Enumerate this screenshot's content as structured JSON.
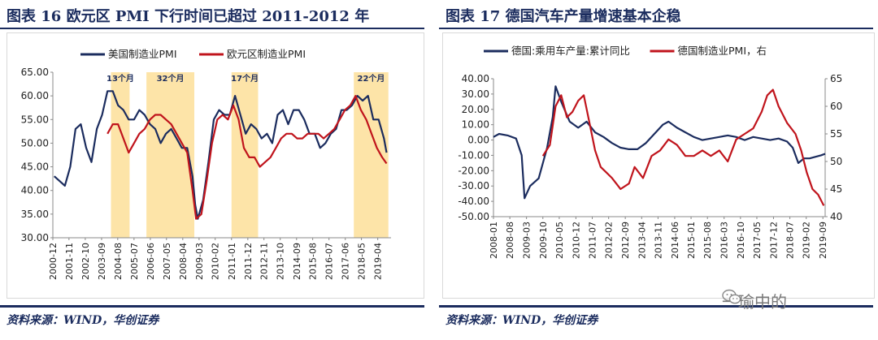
{
  "colors": {
    "navy": "#1b2c5e",
    "red": "#c0141c",
    "highlight": "#fde4a8",
    "grid": "#e6e6e6"
  },
  "watermark": {
    "text": "一瑜中的"
  },
  "left": {
    "title": "图表 16   欧元区 PMI 下行时间已超过 2011-2012 年",
    "source": "资料来源：WIND，华创证券"
  },
  "right": {
    "title": "图表 17    德国汽车产量增速基本企稳",
    "source": "资料来源：WIND，华创证券"
  },
  "chart_data": [
    {
      "type": "line",
      "title": "",
      "legend": [
        "美国制造业PMI",
        "欧元区制造业PMI"
      ],
      "legend_position": "top",
      "ylim": [
        30,
        65
      ],
      "y_ticks": [
        "30.00",
        "35.00",
        "40.00",
        "45.00",
        "50.00",
        "55.00",
        "60.00",
        "65.00"
      ],
      "x_range": [
        2000.92,
        2020.0
      ],
      "x_tick_labels": [
        "2000-12",
        "2001-11",
        "2002-10",
        "2003-09",
        "2004-08",
        "2005-07",
        "2006-06",
        "2007-05",
        "2008-04",
        "2009-03",
        "2010-02",
        "2011-01",
        "2011-12",
        "2012-11",
        "2013-10",
        "2014-09",
        "2015-08",
        "2016-07",
        "2017-06",
        "2018-05",
        "2019-04"
      ],
      "x_tick_values": [
        2000.92,
        2001.83,
        2002.75,
        2003.67,
        2004.58,
        2005.5,
        2006.42,
        2007.33,
        2008.25,
        2009.17,
        2010.08,
        2011.0,
        2011.92,
        2012.83,
        2013.75,
        2014.67,
        2015.58,
        2016.5,
        2017.42,
        2018.33,
        2019.25
      ],
      "shaded_periods": [
        {
          "label": "13个月",
          "start": 2004.2,
          "end": 2005.25
        },
        {
          "label": "32个月",
          "start": 2006.2,
          "end": 2008.9
        },
        {
          "label": "17个月",
          "start": 2011.0,
          "end": 2012.5
        },
        {
          "label": "22个月",
          "start": 2017.9,
          "end": 2019.85
        }
      ],
      "series": [
        {
          "name": "美国制造业PMI",
          "color": "#1b2c5e",
          "x": [
            2001.0,
            2001.3,
            2001.6,
            2001.9,
            2002.2,
            2002.5,
            2002.8,
            2003.1,
            2003.4,
            2003.7,
            2004.0,
            2004.3,
            2004.6,
            2004.9,
            2005.2,
            2005.5,
            2005.8,
            2006.1,
            2006.4,
            2006.7,
            2007.0,
            2007.3,
            2007.6,
            2007.9,
            2008.2,
            2008.5,
            2008.8,
            2008.95,
            2009.1,
            2009.4,
            2009.7,
            2010.0,
            2010.3,
            2010.6,
            2010.9,
            2011.2,
            2011.5,
            2011.8,
            2012.1,
            2012.4,
            2012.7,
            2013.0,
            2013.3,
            2013.6,
            2013.9,
            2014.2,
            2014.5,
            2014.8,
            2015.1,
            2015.4,
            2015.7,
            2016.0,
            2016.3,
            2016.6,
            2016.9,
            2017.2,
            2017.5,
            2017.8,
            2018.1,
            2018.4,
            2018.7,
            2019.0,
            2019.3,
            2019.6,
            2019.75
          ],
          "y": [
            43,
            42,
            41,
            45,
            53,
            54,
            49,
            46,
            53,
            56,
            61,
            61,
            58,
            57,
            55,
            55,
            57,
            56,
            54,
            53,
            50,
            52,
            53,
            51,
            49,
            49,
            43,
            37,
            34,
            38,
            46,
            55,
            57,
            56,
            56,
            60,
            56,
            52,
            54,
            53,
            51,
            52,
            50,
            56,
            57,
            54,
            57,
            57,
            55,
            52,
            52,
            49,
            50,
            52,
            53,
            57,
            57,
            58,
            60,
            59,
            60,
            55,
            55,
            51,
            48
          ]
        },
        {
          "name": "欧元区制造业PMI",
          "color": "#c0141c",
          "x": [
            2004.0,
            2004.3,
            2004.6,
            2004.9,
            2005.2,
            2005.5,
            2005.8,
            2006.1,
            2006.4,
            2006.7,
            2007.0,
            2007.3,
            2007.6,
            2007.9,
            2008.2,
            2008.5,
            2008.8,
            2009.0,
            2009.3,
            2009.6,
            2009.9,
            2010.2,
            2010.5,
            2010.8,
            2011.1,
            2011.4,
            2011.7,
            2012.0,
            2012.3,
            2012.6,
            2012.9,
            2013.2,
            2013.5,
            2013.8,
            2014.1,
            2014.4,
            2014.7,
            2015.0,
            2015.3,
            2015.6,
            2015.9,
            2016.2,
            2016.5,
            2016.8,
            2017.1,
            2017.4,
            2017.7,
            2018.0,
            2018.3,
            2018.6,
            2018.9,
            2019.2,
            2019.5,
            2019.75
          ],
          "y": [
            52,
            54,
            54,
            51,
            48,
            50,
            52,
            53,
            55,
            56,
            56,
            55,
            54,
            52,
            50,
            48,
            40,
            34,
            35,
            42,
            50,
            55,
            56,
            55,
            58,
            55,
            49,
            47,
            47,
            45,
            46,
            47,
            49,
            51,
            52,
            52,
            51,
            51,
            52,
            52,
            52,
            51,
            52,
            53,
            55,
            57,
            58,
            60,
            57,
            55,
            52,
            49,
            47,
            45.7
          ]
        }
      ]
    },
    {
      "type": "line",
      "title": "",
      "legend": [
        "德国:乘用车产量:累计同比",
        "德国制造业PMI，右"
      ],
      "legend_position": "top",
      "ylim": [
        -50,
        40
      ],
      "y_ticks": [
        "-50.00",
        "-40.00",
        "-30.00",
        "-20.00",
        "-10.00",
        "0.00",
        "10.00",
        "20.00",
        "30.00",
        "40.00"
      ],
      "y2lim": [
        40,
        65
      ],
      "y2_ticks": [
        "40",
        "45",
        "50",
        "55",
        "60",
        "65"
      ],
      "x_range": [
        2008.0,
        2019.75
      ],
      "x_tick_labels": [
        "2008-01",
        "2008-08",
        "2009-03",
        "2009-10",
        "2010-05",
        "2010-12",
        "2011-07",
        "2012-02",
        "2012-09",
        "2013-04",
        "2013-11",
        "2014-06",
        "2015-01",
        "2015-08",
        "2016-03",
        "2016-10",
        "2017-05",
        "2017-12",
        "2018-07",
        "2019-02",
        "2019-09"
      ],
      "x_tick_values": [
        2008.0,
        2008.58,
        2009.17,
        2009.75,
        2010.33,
        2010.92,
        2011.5,
        2012.08,
        2012.67,
        2013.25,
        2013.83,
        2014.42,
        2015.0,
        2015.58,
        2016.17,
        2016.75,
        2017.33,
        2017.92,
        2018.5,
        2019.08,
        2019.67
      ],
      "series": [
        {
          "name": "德国:乘用车产量:累计同比",
          "axis": "left",
          "color": "#1b2c5e",
          "x": [
            2008.0,
            2008.2,
            2008.5,
            2008.8,
            2009.0,
            2009.1,
            2009.3,
            2009.6,
            2009.9,
            2010.1,
            2010.2,
            2010.4,
            2010.7,
            2011.0,
            2011.3,
            2011.6,
            2011.9,
            2012.2,
            2012.5,
            2012.8,
            2013.1,
            2013.4,
            2013.7,
            2014.0,
            2014.2,
            2014.5,
            2014.8,
            2015.1,
            2015.4,
            2015.7,
            2016.0,
            2016.3,
            2016.6,
            2016.9,
            2017.2,
            2017.5,
            2017.8,
            2018.1,
            2018.4,
            2018.6,
            2018.8,
            2019.0,
            2019.2,
            2019.4,
            2019.6,
            2019.75
          ],
          "y": [
            2,
            4,
            3,
            1,
            -10,
            -38,
            -30,
            -25,
            -5,
            15,
            35,
            25,
            12,
            8,
            12,
            5,
            2,
            -2,
            -5,
            -6,
            -6,
            -2,
            4,
            10,
            12,
            8,
            5,
            2,
            0,
            1,
            2,
            3,
            2,
            0,
            2,
            1,
            0,
            1,
            -1,
            -5,
            -15,
            -12,
            -12,
            -11,
            -10,
            -9
          ]
        },
        {
          "name": "德国制造业PMI，右",
          "axis": "right",
          "color": "#c0141c",
          "x": [
            2009.75,
            2010.0,
            2010.2,
            2010.4,
            2010.6,
            2010.8,
            2011.0,
            2011.2,
            2011.4,
            2011.6,
            2011.8,
            2012.0,
            2012.2,
            2012.5,
            2012.8,
            2013.0,
            2013.3,
            2013.6,
            2013.9,
            2014.2,
            2014.5,
            2014.8,
            2015.1,
            2015.4,
            2015.7,
            2016.0,
            2016.3,
            2016.6,
            2016.9,
            2017.2,
            2017.5,
            2017.7,
            2017.9,
            2018.1,
            2018.4,
            2018.7,
            2018.9,
            2019.1,
            2019.3,
            2019.5,
            2019.7
          ],
          "y": [
            51,
            53,
            60,
            62,
            58,
            59,
            61,
            62,
            57,
            52,
            49,
            48,
            47,
            45,
            46,
            49,
            47,
            51,
            52,
            54,
            53,
            51,
            51,
            52,
            51,
            52,
            50,
            54,
            55,
            56,
            59,
            62,
            63,
            60,
            57,
            55,
            52,
            48,
            45,
            44,
            42
          ]
        }
      ]
    }
  ]
}
